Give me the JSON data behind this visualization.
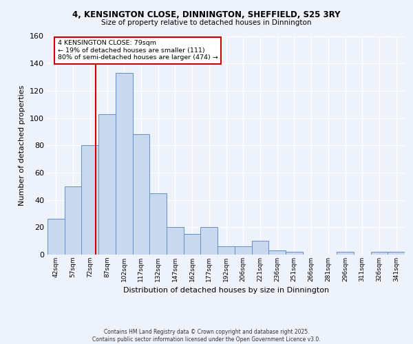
{
  "title_line1": "4, KENSINGTON CLOSE, DINNINGTON, SHEFFIELD, S25 3RY",
  "title_line2": "Size of property relative to detached houses in Dinnington",
  "xlabel": "Distribution of detached houses by size in Dinnington",
  "ylabel": "Number of detached properties",
  "categories": [
    "42sqm",
    "57sqm",
    "72sqm",
    "87sqm",
    "102sqm",
    "117sqm",
    "132sqm",
    "147sqm",
    "162sqm",
    "177sqm",
    "192sqm",
    "206sqm",
    "221sqm",
    "236sqm",
    "251sqm",
    "266sqm",
    "281sqm",
    "296sqm",
    "311sqm",
    "326sqm",
    "341sqm"
  ],
  "values": [
    26,
    50,
    80,
    103,
    133,
    88,
    45,
    20,
    15,
    20,
    6,
    6,
    10,
    3,
    2,
    0,
    0,
    2,
    0,
    2,
    2
  ],
  "bar_color": "#c8d8ee",
  "bar_edge_color": "#6090c8",
  "annotation_text_line1": "4 KENSINGTON CLOSE: 79sqm",
  "annotation_text_line2": "← 19% of detached houses are smaller (111)",
  "annotation_text_line3": "80% of semi-detached houses are larger (474) →",
  "annotation_box_color": "#ffffff",
  "annotation_box_edge_color": "#cc0000",
  "red_line_color": "#cc0000",
  "red_line_x": 2.35,
  "ylim": [
    0,
    160
  ],
  "yticks": [
    0,
    20,
    40,
    60,
    80,
    100,
    120,
    140,
    160
  ],
  "background_color": "#eef2fa",
  "grid_color": "#ffffff",
  "footer_line1": "Contains HM Land Registry data © Crown copyright and database right 2025.",
  "footer_line2": "Contains public sector information licensed under the Open Government Licence v3.0."
}
